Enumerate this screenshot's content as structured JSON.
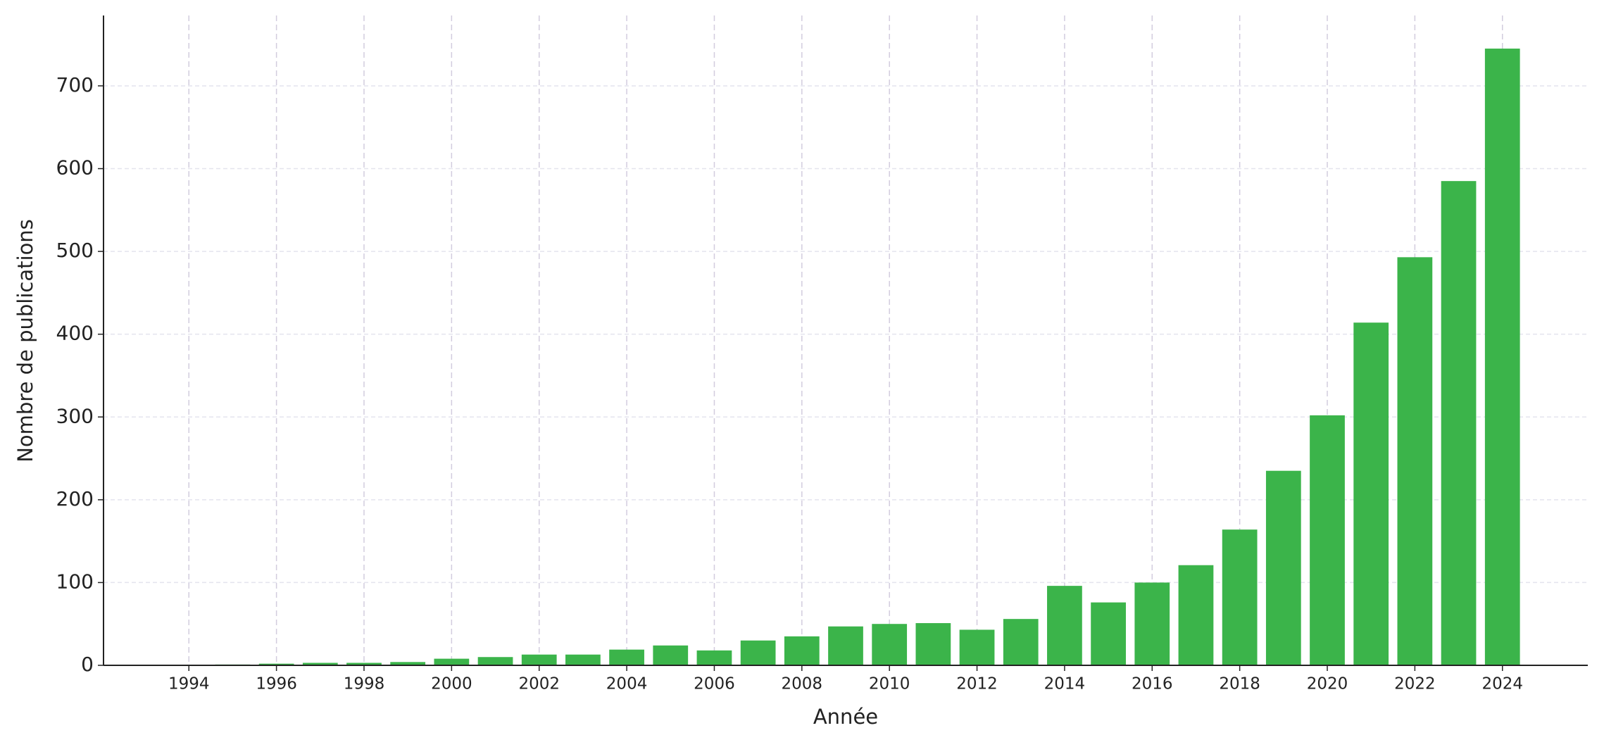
{
  "chart_data": {
    "type": "bar",
    "x": [
      1994,
      1995,
      1996,
      1997,
      1998,
      1999,
      2000,
      2001,
      2002,
      2003,
      2004,
      2005,
      2006,
      2007,
      2008,
      2009,
      2010,
      2011,
      2012,
      2013,
      2014,
      2015,
      2016,
      2017,
      2018,
      2019,
      2020,
      2021,
      2022,
      2023,
      2024
    ],
    "values": [
      0,
      1,
      2,
      3,
      3,
      4,
      8,
      10,
      13,
      13,
      19,
      24,
      18,
      30,
      35,
      47,
      50,
      51,
      43,
      56,
      96,
      76,
      100,
      121,
      164,
      235,
      302,
      414,
      493,
      585,
      745
    ],
    "color": "#3bb44a",
    "xlabel": "Année",
    "ylabel": "Nombre de publications",
    "xlim": [
      1992.05,
      2025.95
    ],
    "xticks": [
      1994,
      1996,
      1998,
      2000,
      2002,
      2004,
      2006,
      2008,
      2010,
      2012,
      2014,
      2016,
      2018,
      2020,
      2022,
      2024
    ],
    "ylim": [
      0,
      785
    ],
    "yticks": [
      0,
      100,
      200,
      300,
      400,
      500,
      600,
      700
    ],
    "grid": true
  }
}
